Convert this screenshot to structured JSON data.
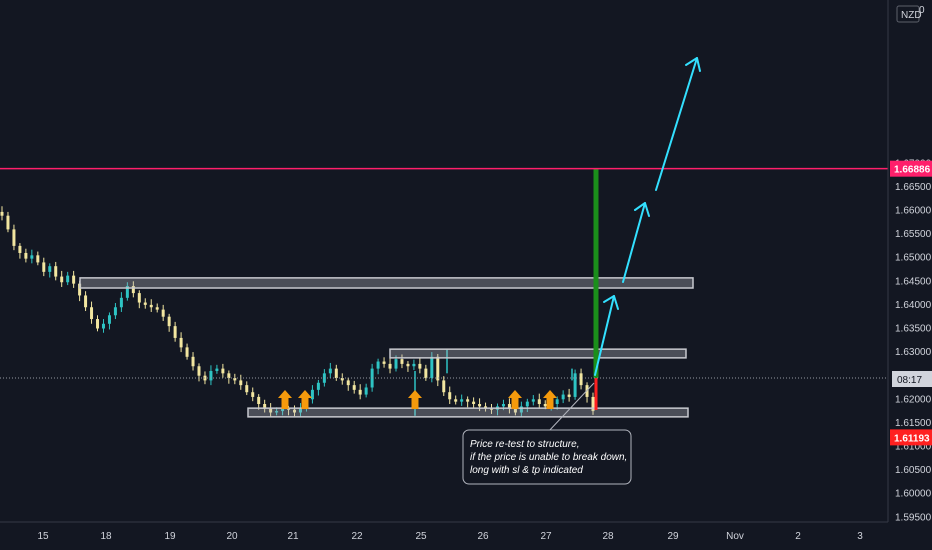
{
  "currency_label": "NZD",
  "clock": "08:17",
  "top_right_glyph": "0",
  "annotation": {
    "lines": [
      "Price re-test to structure,",
      "if the price is unable to break down,",
      "long with sl & tp indicated"
    ]
  },
  "colors": {
    "background": "#131722",
    "bull": "#2ec4c4",
    "bear": "#f2e6a0",
    "target_line": "#ff1f6b",
    "stop_line": "#ff2020",
    "projection_line": "#1b8f1b",
    "arrow": "#33e0ff",
    "marker": "#f59a0c"
  },
  "chart_data": {
    "type": "candlestick",
    "title": "",
    "xlabel": "",
    "ylabel": "",
    "x_ticks": [
      "15",
      "18",
      "19",
      "20",
      "21",
      "22",
      "25",
      "26",
      "27",
      "28",
      "29",
      "Nov",
      "2",
      "3"
    ],
    "y_ticks": [
      "1.59500",
      "1.60000",
      "1.60500",
      "1.61000",
      "1.61500",
      "1.62000",
      "1.62500",
      "1.63000",
      "1.63500",
      "1.64000",
      "1.64500",
      "1.65000",
      "1.65500",
      "1.66000",
      "1.66500",
      "1.67000"
    ],
    "ylim": [
      1.594,
      1.7046
    ],
    "price_levels": {
      "target": {
        "value": 1.66886,
        "label": "1.66886"
      },
      "stop": {
        "value": 1.61193,
        "label": "1.61193"
      }
    },
    "support_resistance_zones": [
      {
        "low": 1.644,
        "high": 1.6453,
        "from": "17",
        "to": "29"
      },
      {
        "low": 1.6292,
        "high": 1.6302,
        "from": "22",
        "to": "28"
      },
      {
        "low": 1.6167,
        "high": 1.6177,
        "from": "20",
        "to": "28"
      }
    ],
    "bounce_markers": [
      "21",
      "21",
      "25",
      "26",
      "27"
    ],
    "path_close": [
      1.6589,
      1.656,
      1.6525,
      1.651,
      1.6498,
      1.6505,
      1.649,
      1.647,
      1.6482,
      1.646,
      1.6448,
      1.6462,
      1.6445,
      1.642,
      1.6395,
      1.637,
      1.635,
      1.636,
      1.6378,
      1.6395,
      1.6415,
      1.644,
      1.6425,
      1.6405,
      1.64,
      1.6395,
      1.639,
      1.6375,
      1.6355,
      1.633,
      1.631,
      1.629,
      1.627,
      1.625,
      1.624,
      1.626,
      1.6265,
      1.6255,
      1.6245,
      1.624,
      1.623,
      1.6215,
      1.6205,
      1.619,
      1.618,
      1.6172,
      1.6175,
      1.618,
      1.6178,
      1.6172,
      1.618,
      1.62,
      1.622,
      1.6235,
      1.6255,
      1.6265,
      1.6245,
      1.624,
      1.623,
      1.622,
      1.621,
      1.6225,
      1.6265,
      1.628,
      1.6275,
      1.6265,
      1.6285,
      1.6275,
      1.627,
      1.6275,
      1.6265,
      1.6245,
      1.629,
      1.624,
      1.6215,
      1.62,
      1.6195,
      1.62,
      1.6195,
      1.619,
      1.6185,
      1.618,
      1.6178,
      1.6185,
      1.619,
      1.618,
      1.6172,
      1.6185,
      1.6195,
      1.62,
      1.619,
      1.6185,
      1.619,
      1.62,
      1.621,
      1.6205,
      1.6255,
      1.623,
      1.6205,
      1.6175
    ]
  }
}
